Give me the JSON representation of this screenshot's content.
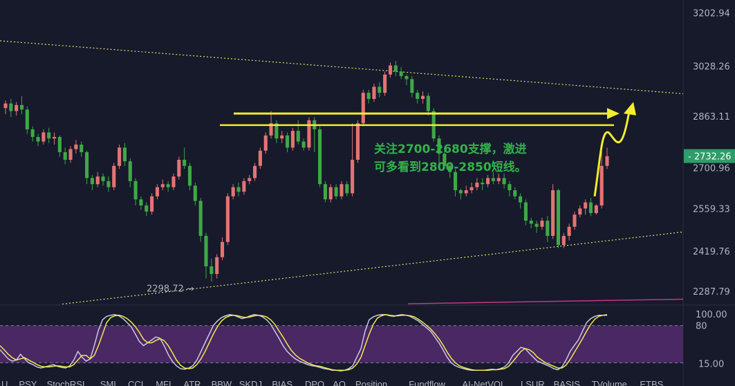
{
  "chart_data": {
    "type": "candlestick",
    "price_axis_ticks": [
      "3202.94",
      "3028.26",
      "2863.11",
      "2559.33",
      "2419.76",
      "2287.79"
    ],
    "price_axis_values": [
      3202.94,
      3028.26,
      2863.11,
      2559.33,
      2419.76,
      2287.79
    ],
    "ylim": [
      2245,
      3245
    ],
    "last_price": "2732.26",
    "last_price_value": 2732.26,
    "hidden_tick_partial": "2700.96",
    "low_marker": "2298.72",
    "low_marker_value": 2298.72,
    "annotation_line1": "关注2700-2680支撑，激进",
    "annotation_line2": "可多看到2800-2850短线。",
    "horizontal_levels": [
      2872,
      2834
    ],
    "upper_trend": {
      "from": 3111,
      "to": 2937
    },
    "lower_trend": {
      "from": 2246,
      "to": 2483
    },
    "pink_line": {
      "from": 2247,
      "to": 2262
    },
    "candles": [
      [
        2890,
        2905,
        2870,
        2915
      ],
      [
        2905,
        2880,
        2860,
        2920
      ],
      [
        2880,
        2900,
        2865,
        2910
      ],
      [
        2900,
        2885,
        2870,
        2930
      ],
      [
        2885,
        2820,
        2805,
        2895
      ],
      [
        2820,
        2795,
        2780,
        2830
      ],
      [
        2795,
        2780,
        2765,
        2805
      ],
      [
        2780,
        2810,
        2770,
        2820
      ],
      [
        2810,
        2790,
        2775,
        2825
      ],
      [
        2790,
        2795,
        2770,
        2810
      ],
      [
        2795,
        2745,
        2730,
        2800
      ],
      [
        2745,
        2720,
        2705,
        2760
      ],
      [
        2720,
        2755,
        2710,
        2765
      ],
      [
        2755,
        2770,
        2740,
        2785
      ],
      [
        2770,
        2745,
        2730,
        2780
      ],
      [
        2745,
        2660,
        2640,
        2750
      ],
      [
        2660,
        2640,
        2620,
        2670
      ],
      [
        2640,
        2665,
        2630,
        2680
      ],
      [
        2665,
        2650,
        2635,
        2675
      ],
      [
        2650,
        2630,
        2615,
        2665
      ],
      [
        2630,
        2700,
        2620,
        2710
      ],
      [
        2700,
        2760,
        2690,
        2770
      ],
      [
        2760,
        2715,
        2700,
        2775
      ],
      [
        2715,
        2650,
        2630,
        2725
      ],
      [
        2650,
        2590,
        2570,
        2660
      ],
      [
        2590,
        2570,
        2555,
        2600
      ],
      [
        2570,
        2550,
        2535,
        2580
      ],
      [
        2550,
        2600,
        2540,
        2610
      ],
      [
        2600,
        2630,
        2590,
        2640
      ],
      [
        2630,
        2640,
        2620,
        2655
      ],
      [
        2640,
        2630,
        2615,
        2650
      ],
      [
        2630,
        2665,
        2620,
        2675
      ],
      [
        2665,
        2720,
        2655,
        2730
      ],
      [
        2720,
        2700,
        2690,
        2760
      ],
      [
        2700,
        2635,
        2620,
        2710
      ],
      [
        2635,
        2585,
        2570,
        2645
      ],
      [
        2585,
        2470,
        2450,
        2595
      ],
      [
        2470,
        2370,
        2330,
        2480
      ],
      [
        2370,
        2345,
        2320,
        2395
      ],
      [
        2345,
        2400,
        2330,
        2410
      ],
      [
        2400,
        2450,
        2390,
        2465
      ],
      [
        2450,
        2600,
        2440,
        2610
      ],
      [
        2600,
        2630,
        2590,
        2640
      ],
      [
        2630,
        2615,
        2600,
        2645
      ],
      [
        2615,
        2650,
        2605,
        2660
      ],
      [
        2650,
        2660,
        2640,
        2670
      ],
      [
        2660,
        2700,
        2650,
        2710
      ],
      [
        2700,
        2750,
        2690,
        2760
      ],
      [
        2750,
        2800,
        2740,
        2810
      ],
      [
        2800,
        2840,
        2790,
        2880
      ],
      [
        2840,
        2790,
        2775,
        2850
      ],
      [
        2790,
        2800,
        2775,
        2815
      ],
      [
        2800,
        2760,
        2745,
        2810
      ],
      [
        2760,
        2815,
        2750,
        2825
      ],
      [
        2815,
        2780,
        2770,
        2850
      ],
      [
        2780,
        2760,
        2750,
        2790
      ],
      [
        2760,
        2850,
        2750,
        2860
      ],
      [
        2850,
        2820,
        2745,
        2860
      ],
      [
        2820,
        2640,
        2630,
        2830
      ],
      [
        2640,
        2590,
        2580,
        2650
      ],
      [
        2590,
        2630,
        2580,
        2640
      ],
      [
        2630,
        2600,
        2590,
        2640
      ],
      [
        2600,
        2640,
        2590,
        2650
      ],
      [
        2640,
        2610,
        2600,
        2650
      ],
      [
        2610,
        2720,
        2600,
        2840
      ],
      [
        2720,
        2840,
        2710,
        2850
      ],
      [
        2840,
        2940,
        2830,
        2950
      ],
      [
        2940,
        2920,
        2905,
        2950
      ],
      [
        2920,
        2960,
        2910,
        2970
      ],
      [
        2960,
        2940,
        2925,
        2975
      ],
      [
        2940,
        3000,
        2930,
        3010
      ],
      [
        3000,
        3030,
        2990,
        3040
      ],
      [
        3030,
        3010,
        2995,
        3045
      ],
      [
        3010,
        2995,
        2985,
        3025
      ],
      [
        2995,
        2985,
        2965,
        3000
      ],
      [
        2985,
        2940,
        2925,
        2995
      ],
      [
        2940,
        2920,
        2905,
        2950
      ],
      [
        2920,
        2930,
        2905,
        2945
      ],
      [
        2930,
        2880,
        2865,
        2940
      ],
      [
        2880,
        2790,
        2780,
        2890
      ],
      [
        2790,
        2740,
        2700,
        2800
      ],
      [
        2740,
        2700,
        2690,
        2750
      ],
      [
        2700,
        2680,
        2660,
        2710
      ],
      [
        2680,
        2620,
        2600,
        2690
      ],
      [
        2620,
        2610,
        2590,
        2625
      ],
      [
        2610,
        2620,
        2600,
        2635
      ],
      [
        2620,
        2630,
        2610,
        2645
      ],
      [
        2630,
        2645,
        2620,
        2660
      ],
      [
        2645,
        2640,
        2620,
        2660
      ],
      [
        2640,
        2660,
        2630,
        2670
      ],
      [
        2660,
        2650,
        2640,
        2680
      ],
      [
        2650,
        2660,
        2640,
        2675
      ],
      [
        2660,
        2640,
        2625,
        2675
      ],
      [
        2640,
        2620,
        2600,
        2650
      ],
      [
        2620,
        2600,
        2590,
        2630
      ],
      [
        2600,
        2580,
        2560,
        2610
      ],
      [
        2580,
        2520,
        2505,
        2590
      ],
      [
        2520,
        2510,
        2495,
        2530
      ],
      [
        2510,
        2500,
        2480,
        2520
      ],
      [
        2500,
        2520,
        2490,
        2530
      ],
      [
        2520,
        2470,
        2450,
        2535
      ],
      [
        2470,
        2620,
        2460,
        2640
      ],
      [
        2620,
        2440,
        2430,
        2625
      ],
      [
        2440,
        2470,
        2430,
        2480
      ],
      [
        2470,
        2500,
        2455,
        2510
      ],
      [
        2500,
        2540,
        2490,
        2550
      ],
      [
        2540,
        2560,
        2530,
        2570
      ],
      [
        2560,
        2580,
        2540,
        2590
      ],
      [
        2580,
        2545,
        2535,
        2595
      ],
      [
        2545,
        2570,
        2540,
        2575
      ],
      [
        2570,
        2700,
        2560,
        2770
      ],
      [
        2700,
        2732,
        2690,
        2760
      ]
    ],
    "stochrsi_ylim": [
      0,
      100
    ],
    "stochrsi_ticks": [
      "100.00",
      "80",
      "15.00"
    ],
    "stochrsi_k": [
      38,
      30,
      22,
      18,
      20,
      30,
      22,
      15,
      12,
      8,
      6,
      8,
      10,
      12,
      9,
      7,
      6,
      10,
      20,
      35,
      25,
      18,
      22,
      45,
      72,
      90,
      96,
      98,
      99,
      97,
      92,
      85,
      78,
      65,
      52,
      45,
      50,
      55,
      60,
      58,
      45,
      30,
      18,
      10,
      5,
      4,
      6,
      10,
      20,
      35,
      50,
      65,
      80,
      88,
      94,
      97,
      99,
      98,
      95,
      92,
      94,
      97,
      99,
      98,
      95,
      90,
      82,
      70,
      58,
      45,
      35,
      28,
      22,
      18,
      15,
      12,
      10,
      9,
      7,
      5,
      4,
      2,
      2,
      1,
      2,
      5,
      10,
      25,
      40,
      70,
      90,
      95,
      98,
      99,
      99,
      97,
      96,
      98,
      99,
      98,
      96,
      92,
      88,
      82,
      76,
      70,
      60,
      50,
      38,
      25,
      15,
      10,
      7,
      5,
      3,
      2,
      2,
      2,
      2,
      3,
      4,
      3,
      5,
      8,
      15,
      28,
      35,
      42,
      40,
      32,
      25,
      18,
      15,
      12,
      9,
      5,
      3,
      8,
      20,
      35,
      45,
      55,
      70,
      85,
      92,
      96,
      98,
      98,
      99
    ],
    "stochrsi_d": [
      45,
      38,
      30,
      24,
      20,
      22,
      24,
      20,
      16,
      12,
      9,
      8,
      8,
      9,
      10,
      9,
      8,
      8,
      12,
      20,
      28,
      28,
      22,
      28,
      45,
      65,
      85,
      94,
      97,
      98,
      96,
      92,
      86,
      78,
      68,
      56,
      50,
      50,
      54,
      57,
      54,
      45,
      33,
      20,
      11,
      6,
      5,
      6,
      12,
      22,
      35,
      50,
      65,
      78,
      88,
      94,
      97,
      98,
      97,
      95,
      94,
      95,
      97,
      98,
      97,
      95,
      90,
      82,
      71,
      60,
      48,
      37,
      29,
      23,
      19,
      15,
      12,
      10,
      9,
      7,
      5,
      3,
      2,
      2,
      2,
      3,
      6,
      13,
      25,
      45,
      65,
      82,
      93,
      97,
      99,
      98,
      97,
      97,
      98,
      98,
      97,
      95,
      91,
      86,
      80,
      74,
      66,
      57,
      46,
      34,
      23,
      15,
      10,
      7,
      5,
      3,
      2,
      2,
      2,
      2,
      3,
      3,
      4,
      5,
      9,
      17,
      26,
      35,
      40,
      38,
      33,
      25,
      20,
      15,
      12,
      9,
      6,
      6,
      11,
      21,
      33,
      45,
      57,
      70,
      82,
      91,
      96,
      98,
      98
    ],
    "bottom_tabs": [
      "U",
      "PSY",
      "StochRSI",
      "SMI",
      "CCI",
      "MFI",
      "ATR",
      "BBW",
      "SKDJ",
      "BIAS",
      "DPO",
      "AO",
      "Position",
      "Fundflow",
      "AI-NetVOL",
      "LSUR",
      "BASIS",
      "TVolume",
      "ETBS"
    ],
    "active_tab": "StochRSI",
    "colors": {
      "background": "#161a2b",
      "up": "#e57373",
      "down": "#3fa845",
      "annotation_line": "#f2ee2e",
      "annotation_text": "#32b34a",
      "trend_dotted": "#e8e36a",
      "pink_line": "#c2388b",
      "rsi_band": "#4a2864",
      "rsi_k": "#c9c9e8",
      "rsi_d": "#f5e94a",
      "last_price_bg": "#2e9d6a",
      "active_tab": "#2962ff"
    }
  }
}
